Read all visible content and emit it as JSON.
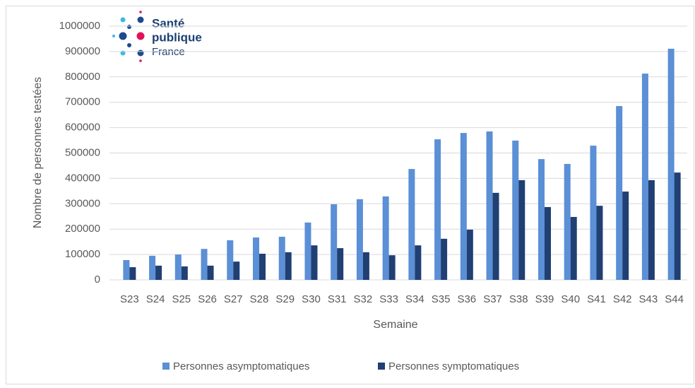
{
  "logo": {
    "line1": "Santé",
    "line2": "publique",
    "line3": "France"
  },
  "chart_data": {
    "type": "bar",
    "x_label": "Semaine",
    "y_label": "Nombre de personnes testées",
    "categories": [
      "S23",
      "S24",
      "S25",
      "S26",
      "S27",
      "S28",
      "S29",
      "S30",
      "S31",
      "S32",
      "S33",
      "S34",
      "S35",
      "S36",
      "S37",
      "S38",
      "S39",
      "S40",
      "S41",
      "S42",
      "S43",
      "S44"
    ],
    "series": [
      {
        "name": "Personnes asymptomatiques",
        "color": "#5b8fd6",
        "values": [
          78000,
          95000,
          100000,
          122000,
          156000,
          167000,
          170000,
          226000,
          298000,
          318000,
          329000,
          437000,
          554000,
          579000,
          585000,
          549000,
          476000,
          457000,
          529000,
          685000,
          813000,
          911000
        ]
      },
      {
        "name": "Personnes symptomatiques",
        "color": "#203f73",
        "values": [
          50000,
          56000,
          53000,
          56000,
          72000,
          103000,
          109000,
          136000,
          125000,
          109000,
          97000,
          136000,
          162000,
          198000,
          343000,
          393000,
          287000,
          248000,
          292000,
          348000,
          393000,
          423000
        ]
      }
    ],
    "ylim": [
      0,
      1000000
    ],
    "yticks": [
      0,
      100000,
      200000,
      300000,
      400000,
      500000,
      600000,
      700000,
      800000,
      900000,
      1000000
    ],
    "grid": true
  }
}
